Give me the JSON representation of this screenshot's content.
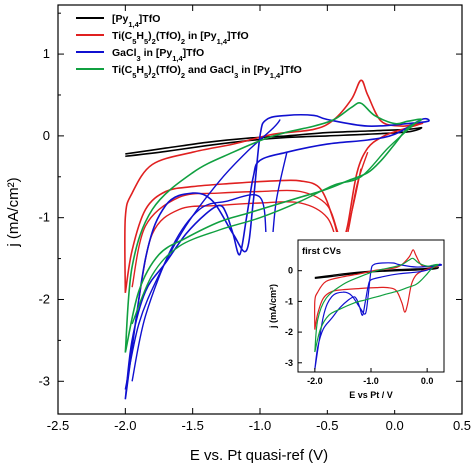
{
  "chart_data": {
    "type": "line",
    "xlabel": "E vs. Pt quasi-ref (V)",
    "ylabel": "j (mA/cm²)",
    "xlim": [
      -2.5,
      0.5
    ],
    "ylim": [
      -3.4,
      1.6
    ],
    "x_ticks": [
      "-2.5",
      "-2.0",
      "-1.5",
      "-1.0",
      "-0.5",
      "0.0",
      "0.5"
    ],
    "y_ticks": [
      "-3",
      "-2",
      "-1",
      "0",
      "1"
    ],
    "legend_position": "top-left",
    "series": [
      {
        "name_html": "[Py<sub>1,4</sub>]TfO",
        "color": "#000000",
        "points": [
          [
            -2.0,
            -0.25
          ],
          [
            -1.7,
            -0.19
          ],
          [
            -1.4,
            -0.12
          ],
          [
            -1.1,
            -0.06
          ],
          [
            -0.8,
            -0.02
          ],
          [
            -0.5,
            0.0
          ],
          [
            -0.2,
            0.02
          ],
          [
            0.1,
            0.05
          ],
          [
            0.2,
            0.1
          ],
          [
            0.1,
            0.08
          ],
          [
            -0.2,
            0.06
          ],
          [
            -0.5,
            0.04
          ],
          [
            -0.8,
            0.0
          ],
          [
            -1.1,
            -0.03
          ],
          [
            -1.4,
            -0.08
          ],
          [
            -1.7,
            -0.15
          ],
          [
            -2.0,
            -0.22
          ]
        ]
      },
      {
        "name_html": "Ti(C<sub>5</sub>H<sub>5</sub>)<sub>2</sub>(TfO)<sub>2</sub> in [Py<sub>1,4</sub>]TfO",
        "color": "#e02020",
        "points": [
          [
            -2.0,
            -1.92
          ],
          [
            -1.95,
            -1.4
          ],
          [
            -1.85,
            -0.9
          ],
          [
            -1.7,
            -0.68
          ],
          [
            -1.5,
            -0.62
          ],
          [
            -1.2,
            -0.58
          ],
          [
            -0.9,
            -0.55
          ],
          [
            -0.7,
            -0.55
          ],
          [
            -0.55,
            -0.65
          ],
          [
            -0.45,
            -1.05
          ],
          [
            -0.4,
            -1.35
          ],
          [
            -0.35,
            -1.1
          ],
          [
            -0.28,
            -0.45
          ],
          [
            -0.2,
            -0.15
          ],
          [
            -0.1,
            -0.02
          ],
          [
            0.0,
            0.05
          ],
          [
            0.2,
            0.15
          ],
          [
            0.15,
            0.14
          ],
          [
            0.05,
            0.12
          ],
          [
            -0.1,
            0.18
          ],
          [
            -0.2,
            0.5
          ],
          [
            -0.25,
            0.68
          ],
          [
            -0.32,
            0.45
          ],
          [
            -0.45,
            0.2
          ],
          [
            -0.6,
            0.08
          ],
          [
            -0.9,
            0.02
          ],
          [
            -1.2,
            -0.1
          ],
          [
            -1.5,
            -0.2
          ],
          [
            -1.8,
            -0.35
          ],
          [
            -1.95,
            -0.7
          ],
          [
            -2.0,
            -1.0
          ],
          [
            -2.0,
            -1.92
          ]
        ],
        "extra_loops": [
          [
            [
              -1.9,
              -2.0
            ],
            [
              -1.8,
              -1.2
            ],
            [
              -1.6,
              -0.9
            ],
            [
              -1.3,
              -0.85
            ],
            [
              -1.0,
              -0.82
            ],
            [
              -0.7,
              -0.82
            ],
            [
              -0.5,
              -1.0
            ],
            [
              -0.4,
              -1.42
            ],
            [
              -0.35,
              -1.2
            ],
            [
              -0.28,
              -0.6
            ],
            [
              -0.2,
              -0.2
            ]
          ],
          [
            [
              -1.95,
              -1.85
            ],
            [
              -1.85,
              -1.1
            ],
            [
              -1.6,
              -0.75
            ],
            [
              -1.3,
              -0.7
            ],
            [
              -1.0,
              -0.68
            ],
            [
              -0.7,
              -0.68
            ],
            [
              -0.5,
              -0.85
            ],
            [
              -0.4,
              -1.25
            ],
            [
              -0.33,
              -1.0
            ],
            [
              -0.25,
              -0.4
            ]
          ]
        ]
      },
      {
        "name_html": "GaCl<sub>3</sub> in [Py<sub>1,4</sub>]TfO",
        "color": "#1010d0",
        "points": [
          [
            -2.0,
            -3.22
          ],
          [
            -1.95,
            -2.5
          ],
          [
            -1.85,
            -1.9
          ],
          [
            -1.7,
            -1.55
          ],
          [
            -1.55,
            -1.2
          ],
          [
            -1.4,
            -0.95
          ],
          [
            -1.3,
            -0.85
          ],
          [
            -1.25,
            -0.95
          ],
          [
            -1.2,
            -1.2
          ],
          [
            -1.15,
            -1.45
          ],
          [
            -1.1,
            -1.0
          ],
          [
            -1.05,
            -0.5
          ],
          [
            -1.0,
            -0.3
          ],
          [
            -0.8,
            -0.2
          ],
          [
            -0.5,
            -0.1
          ],
          [
            -0.2,
            -0.05
          ],
          [
            0.0,
            0.02
          ],
          [
            0.2,
            0.2
          ],
          [
            0.25,
            0.18
          ],
          [
            0.1,
            0.15
          ],
          [
            -0.2,
            0.12
          ],
          [
            -0.5,
            0.2
          ],
          [
            -0.6,
            0.25
          ],
          [
            -0.8,
            0.25
          ],
          [
            -0.95,
            0.2
          ],
          [
            -1.0,
            0.0
          ],
          [
            -1.05,
            -0.8
          ],
          [
            -1.1,
            -1.4
          ],
          [
            -1.2,
            -1.2
          ],
          [
            -1.35,
            -0.8
          ],
          [
            -1.5,
            -0.7
          ],
          [
            -1.7,
            -0.85
          ],
          [
            -1.85,
            -1.5
          ],
          [
            -2.0,
            -3.22
          ]
        ],
        "extra_loops": [
          [
            [
              -2.0,
              -3.1
            ],
            [
              -1.9,
              -2.3
            ],
            [
              -1.75,
              -1.7
            ],
            [
              -1.55,
              -1.1
            ],
            [
              -1.3,
              -0.55
            ],
            [
              -1.1,
              -0.2
            ],
            [
              -0.9,
              0.1
            ],
            [
              -0.85,
              0.2
            ]
          ],
          [
            [
              -1.95,
              -3.0
            ],
            [
              -1.85,
              -2.2
            ],
            [
              -1.65,
              -1.35
            ],
            [
              -1.45,
              -0.9
            ],
            [
              -1.25,
              -0.8
            ],
            [
              -1.0,
              -0.75
            ],
            [
              -0.95,
              -1.3
            ],
            [
              -0.92,
              -1.45
            ],
            [
              -0.88,
              -0.8
            ],
            [
              -0.8,
              -0.2
            ]
          ]
        ]
      },
      {
        "name_html": "Ti(C<sub>5</sub>H<sub>5</sub>)<sub>2</sub>(TfO)<sub>2</sub> and GaCl<sub>3</sub> in [Py<sub>1,4</sub>]TfO",
        "color": "#10a040",
        "points": [
          [
            -2.0,
            -2.65
          ],
          [
            -1.9,
            -1.9
          ],
          [
            -1.75,
            -1.45
          ],
          [
            -1.55,
            -1.25
          ],
          [
            -1.3,
            -1.05
          ],
          [
            -1.1,
            -0.95
          ],
          [
            -0.9,
            -0.85
          ],
          [
            -0.7,
            -0.75
          ],
          [
            -0.5,
            -0.65
          ],
          [
            -0.35,
            -0.55
          ],
          [
            -0.2,
            -0.45
          ],
          [
            -0.1,
            -0.3
          ],
          [
            0.0,
            -0.1
          ],
          [
            0.1,
            0.1
          ],
          [
            0.2,
            0.2
          ],
          [
            0.1,
            0.18
          ],
          [
            0.0,
            0.15
          ],
          [
            -0.15,
            0.25
          ],
          [
            -0.25,
            0.4
          ],
          [
            -0.32,
            0.35
          ],
          [
            -0.45,
            0.2
          ],
          [
            -0.6,
            0.12
          ],
          [
            -0.9,
            0.0
          ],
          [
            -1.2,
            -0.2
          ],
          [
            -1.5,
            -0.45
          ],
          [
            -1.8,
            -0.9
          ],
          [
            -1.95,
            -1.6
          ],
          [
            -2.0,
            -2.65
          ]
        ],
        "extra_loops": [
          [
            [
              -1.95,
              -2.3
            ],
            [
              -1.8,
              -1.7
            ],
            [
              -1.6,
              -1.35
            ],
            [
              -1.3,
              -1.15
            ],
            [
              -1.0,
              -1.0
            ],
            [
              -0.7,
              -0.8
            ],
            [
              -0.45,
              -0.6
            ],
            [
              -0.25,
              -0.5
            ],
            [
              -0.05,
              -0.15
            ],
            [
              0.15,
              0.15
            ]
          ]
        ]
      }
    ]
  },
  "inset": {
    "title": "first CVs",
    "xlabel": "E vs Pt  /  V",
    "ylabel": "j (mA/cm²)",
    "xlim": [
      -2.3,
      0.3
    ],
    "ylim": [
      -3.3,
      1.0
    ],
    "x_ticks": [
      "-2.0",
      "-1.0",
      "0.0"
    ],
    "y_ticks": [
      "0",
      "-1",
      "-2",
      "-3"
    ]
  },
  "colors": {
    "axis": "#000000",
    "black": "#000000",
    "red": "#e02020",
    "blue": "#1010d0",
    "green": "#10a040"
  }
}
